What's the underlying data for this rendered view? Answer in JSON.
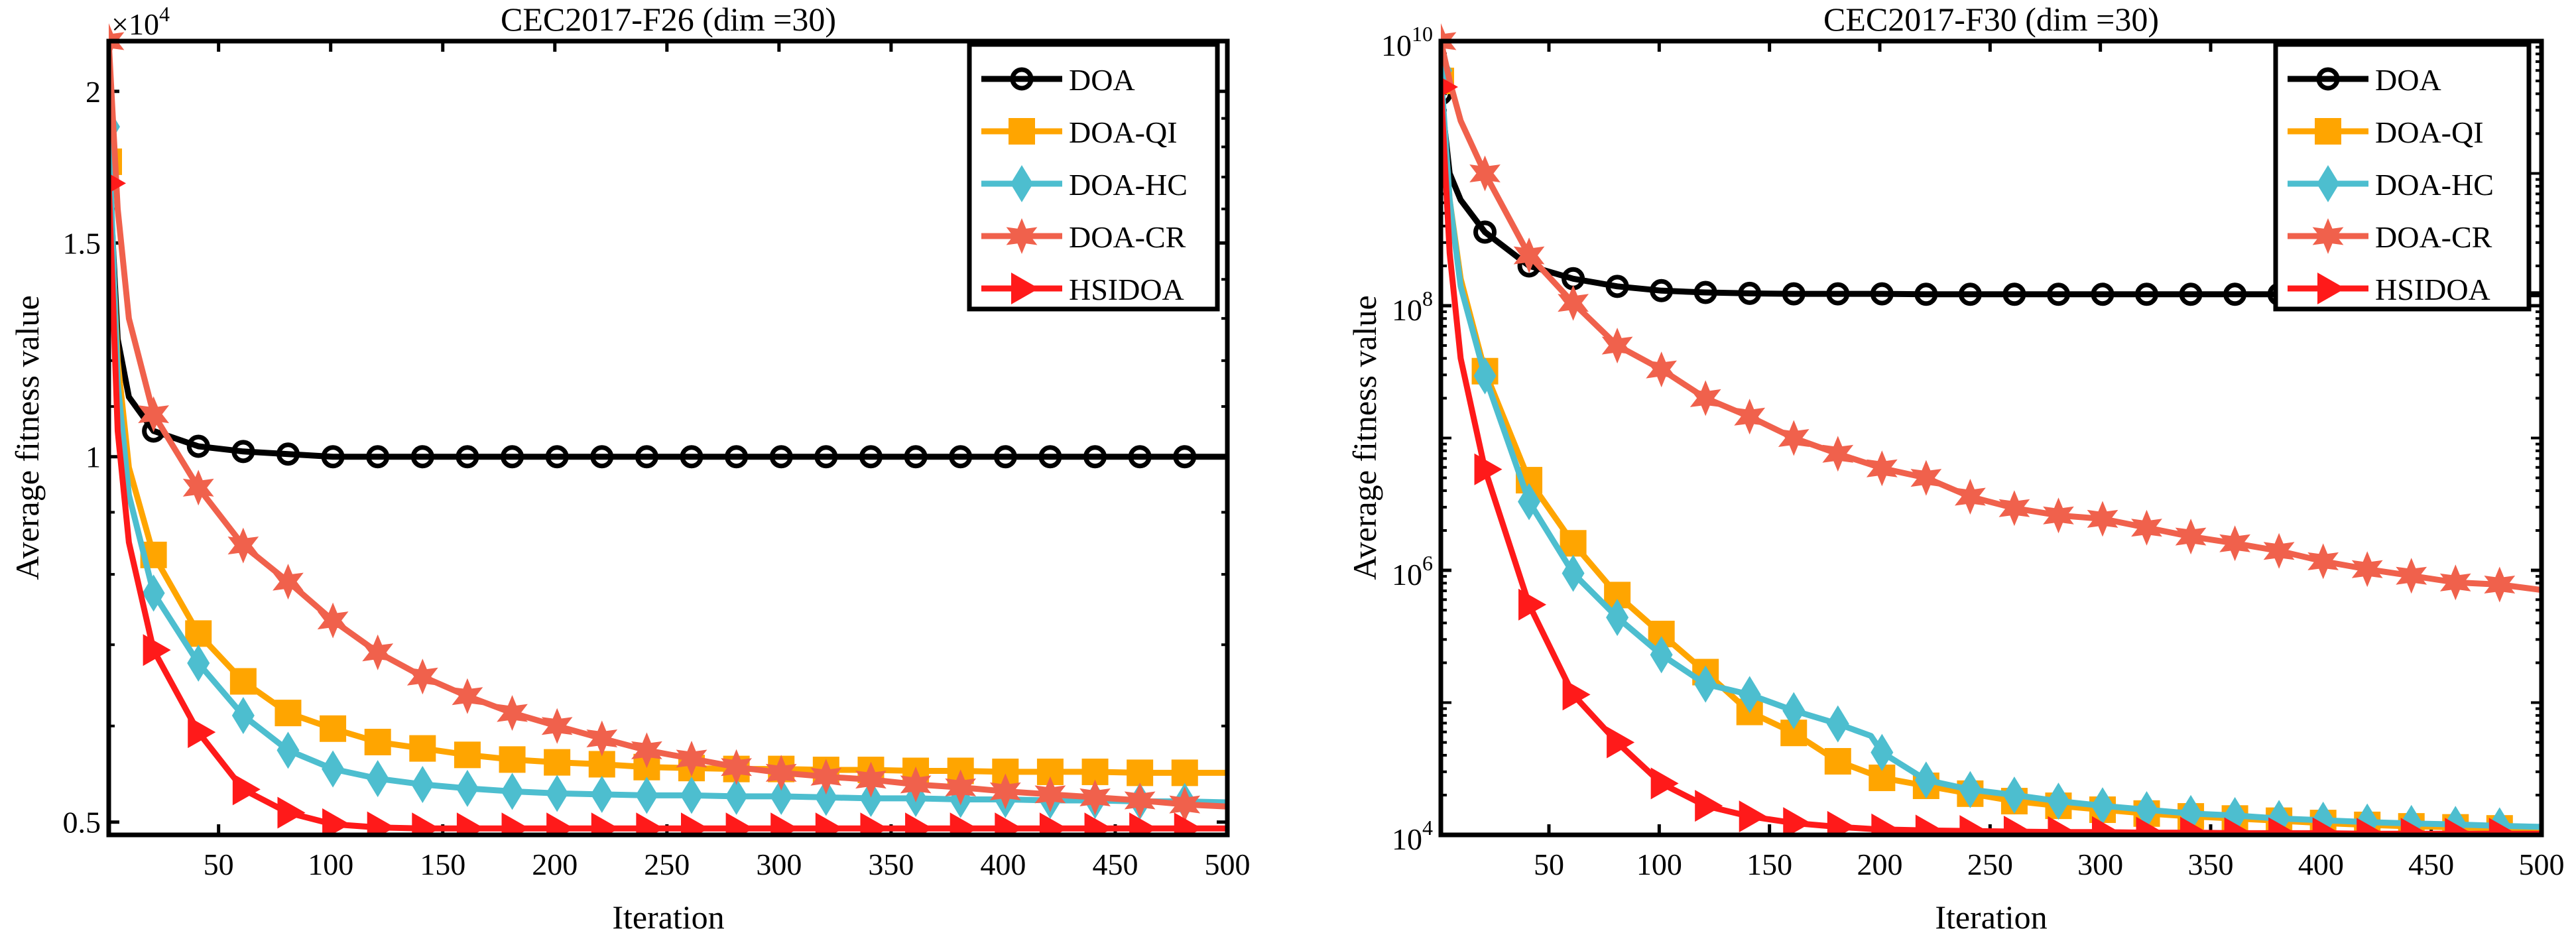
{
  "colors": {
    "DOA": "#000000",
    "DOA-QI": "#FFA500",
    "DOA-HC": "#4DBECF",
    "DOA-CR": "#F0614C",
    "HSIDOA": "#FF1A1A"
  },
  "chart_data": [
    {
      "type": "line",
      "title": "CEC2017-F26 (dim =30)",
      "xlabel": "Iteration",
      "ylabel": "Average fitness value",
      "yscale": "log",
      "y_multiplier_label": "×10",
      "y_multiplier_exp": "4",
      "xlim": [
        1,
        500
      ],
      "ylim": [
        0.488,
        2.2
      ],
      "xticks": [
        50,
        100,
        150,
        200,
        250,
        300,
        350,
        400,
        450,
        500
      ],
      "yticks": [
        {
          "v": 0.5,
          "label": "0.5"
        },
        {
          "v": 1,
          "label": "1"
        },
        {
          "v": 1.5,
          "label": "1.5"
        },
        {
          "v": 2,
          "label": "2"
        }
      ],
      "legend_position": "top-right",
      "x": [
        1,
        5,
        10,
        21,
        41,
        61,
        81,
        101,
        121,
        141,
        161,
        181,
        201,
        221,
        241,
        261,
        281,
        301,
        321,
        341,
        361,
        381,
        401,
        421,
        441,
        461,
        481,
        500
      ],
      "series": [
        {
          "name": "DOA",
          "marker": "circle",
          "values": [
            1.75,
            1.25,
            1.12,
            1.05,
            1.02,
            1.01,
            1.005,
            1.0,
            1.0,
            1.0,
            1.0,
            1.0,
            1.0,
            1.0,
            1.0,
            1.0,
            1.0,
            1.0,
            1.0,
            1.0,
            1.0,
            1.0,
            1.0,
            1.0,
            1.0,
            1.0,
            1.0,
            1.0
          ]
        },
        {
          "name": "DOA-QI",
          "marker": "square",
          "values": [
            1.75,
            1.2,
            0.98,
            0.83,
            0.715,
            0.653,
            0.615,
            0.597,
            0.582,
            0.575,
            0.568,
            0.563,
            0.56,
            0.558,
            0.555,
            0.554,
            0.553,
            0.553,
            0.552,
            0.552,
            0.551,
            0.551,
            0.55,
            0.55,
            0.55,
            0.549,
            0.549,
            0.549
          ]
        },
        {
          "name": "DOA-HC",
          "marker": "diamond",
          "values": [
            1.87,
            1.15,
            0.93,
            0.772,
            0.676,
            0.612,
            0.573,
            0.553,
            0.543,
            0.537,
            0.533,
            0.53,
            0.528,
            0.527,
            0.526,
            0.526,
            0.525,
            0.525,
            0.524,
            0.523,
            0.523,
            0.522,
            0.522,
            0.521,
            0.521,
            0.52,
            0.52,
            0.519
          ]
        },
        {
          "name": "DOA-CR",
          "marker": "star",
          "values": [
            2.2,
            1.6,
            1.3,
            1.084,
            0.943,
            0.845,
            0.789,
            0.733,
            0.69,
            0.659,
            0.635,
            0.615,
            0.6,
            0.586,
            0.573,
            0.564,
            0.555,
            0.549,
            0.545,
            0.542,
            0.537,
            0.534,
            0.53,
            0.527,
            0.524,
            0.521,
            0.517,
            0.515
          ]
        },
        {
          "name": "HSIDOA",
          "marker": "triangle-right",
          "values": [
            1.68,
            1.05,
            0.85,
            0.693,
            0.593,
            0.532,
            0.509,
            0.498,
            0.495,
            0.494,
            0.494,
            0.494,
            0.494,
            0.494,
            0.494,
            0.494,
            0.494,
            0.494,
            0.494,
            0.494,
            0.494,
            0.494,
            0.494,
            0.494,
            0.494,
            0.494,
            0.494,
            0.494
          ]
        }
      ]
    },
    {
      "type": "line",
      "title": "CEC2017-F30 (dim =30)",
      "xlabel": "Iteration",
      "ylabel": "Average fitness value",
      "yscale": "log",
      "xlim": [
        1,
        500
      ],
      "ylim": [
        10000,
        10000000000
      ],
      "xticks": [
        50,
        100,
        150,
        200,
        250,
        300,
        350,
        400,
        450,
        500
      ],
      "yticks": [
        {
          "v": 10000,
          "base": "10",
          "exp": "4"
        },
        {
          "v": 1000000,
          "base": "10",
          "exp": "6"
        },
        {
          "v": 100000000,
          "base": "10",
          "exp": "8"
        },
        {
          "v": 10000000000,
          "base": "10",
          "exp": "10"
        }
      ],
      "legend_position": "top-right",
      "x": [
        1,
        5,
        10,
        21,
        41,
        61,
        81,
        101,
        121,
        141,
        161,
        181,
        196,
        201,
        221,
        241,
        261,
        281,
        301,
        321,
        341,
        361,
        381,
        401,
        421,
        441,
        461,
        481,
        500
      ],
      "series": [
        {
          "name": "DOA",
          "marker": "circle",
          "values": [
            4000000000.0,
            1000000000.0,
            630000000.0,
            360000000.0,
            200000000.0,
            160000000.0,
            140000000.0,
            130000000.0,
            126000000.0,
            124000000.0,
            123000000.0,
            123000000.0,
            123000000.0,
            123000000.0,
            122000000.0,
            122000000.0,
            122000000.0,
            122000000.0,
            122000000.0,
            122000000.0,
            122000000.0,
            122000000.0,
            122000000.0,
            122000000.0,
            122000000.0,
            122000000.0,
            122000000.0,
            122000000.0,
            122000000.0
          ]
        },
        {
          "name": "DOA-QI",
          "marker": "square",
          "values": [
            5000000000.0,
            630000000.0,
            160000000.0,
            32000000.0,
            4800000.0,
            1600000.0,
            650000.0,
            330000.0,
            170000.0,
            85000.0,
            59000.0,
            36000.0,
            29000.0,
            27000.0,
            23500.0,
            20500.0,
            18000.0,
            16600.0,
            15500.0,
            14500.0,
            13800.0,
            13300.0,
            12800.0,
            12300.0,
            11900.0,
            11600.0,
            11400.0,
            11200.0,
            11000.0
          ]
        },
        {
          "name": "DOA-HC",
          "marker": "diamond",
          "values": [
            6000000000.0,
            630000000.0,
            140000000.0,
            29500000.0,
            3300000.0,
            950000.0,
            440000.0,
            230000.0,
            138000.0,
            115000.0,
            87000.0,
            69000.0,
            56000.0,
            42000.0,
            26000.0,
            22000.0,
            20000.0,
            18000.0,
            16600.0,
            15500.0,
            14500.0,
            14000.0,
            13300.0,
            12900.0,
            12500.0,
            12200.0,
            12000.0,
            11700.0,
            11500.0
          ]
        },
        {
          "name": "DOA-CR",
          "marker": "star",
          "values": [
            10000000000.0,
            5000000000.0,
            2500000000.0,
            1000000000.0,
            240000000.0,
            105000000.0,
            50000000.0,
            33000000.0,
            20000000.0,
            14500000.0,
            10000000.0,
            7600000.0,
            6300000.0,
            5900000.0,
            5000000.0,
            3600000.0,
            2950000.0,
            2600000.0,
            2450000.0,
            2100000.0,
            1800000.0,
            1600000.0,
            1400000.0,
            1170000.0,
            1020000.0,
            910000.0,
            810000.0,
            780000.0,
            710000.0
          ]
        },
        {
          "name": "HSIDOA",
          "marker": "triangle-right",
          "values": [
            4500000000.0,
            250000000.0,
            40000000.0,
            5800000.0,
            550000.0,
            115000.0,
            50000.0,
            24500.0,
            16600.0,
            13800.0,
            12300.0,
            11500.0,
            11100.0,
            11000.0,
            10800.0,
            10700.0,
            10600.0,
            10500.0,
            10500.0,
            10400.0,
            10400.0,
            10300.0,
            10300.0,
            10300.0,
            10200.0,
            10200.0,
            10200.0,
            10200.0,
            10200.0
          ]
        }
      ]
    }
  ]
}
